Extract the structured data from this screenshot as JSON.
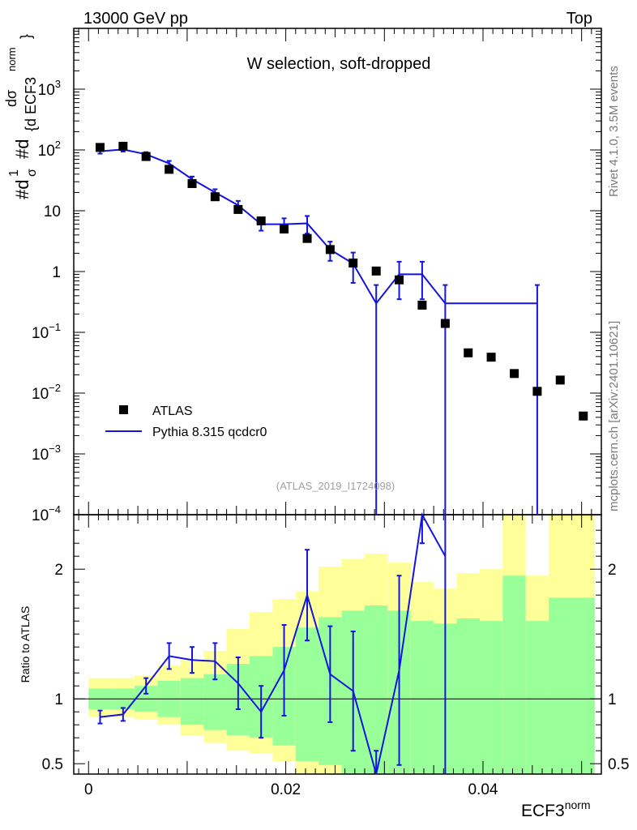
{
  "header": {
    "left": "13000 GeV pp",
    "right": "Top"
  },
  "side_labels": {
    "rivet": "Rivet 4.1.0,  3.5M events",
    "source": "mcplots.cern.ch [arXiv:2401.10621]"
  },
  "chart_data": {
    "type": "line",
    "title": "W selection, soft-dropped",
    "analysis_id": "(ATLAS_2019_I1724098)",
    "main": {
      "ylabel_parts": [
        "#d",
        "1",
        "σ",
        "#d",
        "dσ",
        "{d ECF3",
        "norm",
        "}"
      ],
      "yscale": "log",
      "ylim": [
        0.0001,
        10000
      ],
      "ytick_labels": [
        {
          "value": 1000,
          "base": "10",
          "exp": "3"
        },
        {
          "value": 100,
          "base": "10",
          "exp": "2"
        },
        {
          "value": 10,
          "base": "10",
          "exp": ""
        },
        {
          "value": 1,
          "base": "1",
          "exp": ""
        },
        {
          "value": 0.1,
          "base": "10",
          "exp": "−1"
        },
        {
          "value": 0.01,
          "base": "10",
          "exp": "−2"
        },
        {
          "value": 0.001,
          "base": "10",
          "exp": "−3"
        },
        {
          "value": 0.0001,
          "base": "10",
          "exp": "−4"
        }
      ]
    },
    "xlabel": "ECF3",
    "xlabel_sup": "norm",
    "xlim": [
      -0.0015,
      0.052
    ],
    "xtick_values": [
      0,
      0.02,
      0.04
    ],
    "xtick_labels": [
      "0",
      "0.02",
      "0.04"
    ],
    "x_edges": [
      0,
      0.00233,
      0.00467,
      0.007,
      0.00933,
      0.01167,
      0.014,
      0.01633,
      0.01867,
      0.021,
      0.02333,
      0.02567,
      0.028,
      0.03033,
      0.03267,
      0.035,
      0.03733,
      0.03967,
      0.042,
      0.04433,
      0.04667,
      0.049,
      0.05133
    ],
    "legend": {
      "position": "bottom-left",
      "entries": [
        "ATLAS",
        "Pythia 8.315 qcdcr0"
      ]
    },
    "series": [
      {
        "name": "ATLAS",
        "style": "markers",
        "color": "#000000",
        "x": [
          0.00117,
          0.0035,
          0.00583,
          0.00817,
          0.0105,
          0.01283,
          0.01517,
          0.0175,
          0.01983,
          0.02217,
          0.0245,
          0.02683,
          0.02917,
          0.0315,
          0.03383,
          0.03617,
          0.0385,
          0.04083,
          0.04317,
          0.0455,
          0.04783,
          0.05017
        ],
        "y": [
          110,
          115,
          78,
          48,
          28,
          17,
          10.5,
          6.8,
          5.0,
          3.5,
          2.3,
          1.38,
          1.02,
          0.73,
          0.28,
          0.14,
          0.046,
          0.039,
          0.021,
          0.0107,
          0.0164,
          0.0042
        ]
      },
      {
        "name": "Pythia 8.315 qcdcr0",
        "style": "line",
        "color": "#1414e0",
        "x": [
          0.00117,
          0.0035,
          0.00583,
          0.00817,
          0.0105,
          0.01283,
          0.01517,
          0.0175,
          0.01983,
          0.02217,
          0.0245,
          0.02683,
          0.02917,
          0.0315,
          0.03383,
          0.03617,
          0.0455
        ],
        "y": [
          95,
          102,
          85,
          60,
          33,
          20,
          12.3,
          6.0,
          6.0,
          6.2,
          2.3,
          1.35,
          0.3,
          0.9,
          0.9,
          0.3,
          0.3
        ],
        "yerr_lo": [
          8,
          8,
          7,
          6,
          3.5,
          2.6,
          2.2,
          1.3,
          1.5,
          2.0,
          0.8,
          0.7,
          0.3,
          0.55,
          0.55,
          0.3,
          0.3
        ],
        "yerr_hi": [
          8,
          8,
          7,
          6,
          3.5,
          2.6,
          2.2,
          1.3,
          1.5,
          2.0,
          0.8,
          0.7,
          0.3,
          0.55,
          0.55,
          0.3,
          0.3
        ]
      }
    ],
    "ratio": {
      "ylabel": "Ratio to ATLAS",
      "ylim": [
        0.42,
        2.42
      ],
      "ytick_values": [
        0.5,
        1,
        2
      ],
      "ytick_labels": [
        "0.5",
        "1",
        "2"
      ],
      "band_yellow_lo": [
        0.86,
        0.86,
        0.84,
        0.8,
        0.72,
        0.66,
        0.6,
        0.58,
        0.52,
        0.4,
        0.4,
        0.38,
        0.4,
        0.4,
        0.4,
        0.4,
        0.4,
        0.4,
        0.4,
        0.4,
        0.4,
        0.4
      ],
      "band_yellow_hi": [
        1.16,
        1.16,
        1.18,
        1.26,
        1.3,
        1.37,
        1.54,
        1.67,
        1.77,
        1.83,
        2.02,
        2.08,
        2.12,
        2.05,
        1.9,
        1.85,
        1.97,
        2.0,
        2.45,
        1.95,
        2.45,
        2.45
      ],
      "band_green_lo": [
        0.92,
        0.92,
        0.9,
        0.86,
        0.8,
        0.76,
        0.72,
        0.7,
        0.64,
        0.52,
        0.49,
        0.42,
        0.4,
        0.4,
        0.4,
        0.4,
        0.4,
        0.4,
        0.4,
        0.4,
        0.4,
        0.4
      ],
      "band_green_hi": [
        1.08,
        1.08,
        1.1,
        1.14,
        1.16,
        1.19,
        1.27,
        1.33,
        1.4,
        1.55,
        1.63,
        1.68,
        1.72,
        1.68,
        1.6,
        1.58,
        1.62,
        1.6,
        1.95,
        1.6,
        1.78,
        1.78
      ],
      "mc_ratio_x": [
        0.00117,
        0.0035,
        0.00583,
        0.00817,
        0.0105,
        0.01283,
        0.01517,
        0.0175,
        0.01983,
        0.02217,
        0.0245,
        0.02683,
        0.02917,
        0.0315,
        0.03383,
        0.03617
      ],
      "mc_ratio": [
        0.86,
        0.88,
        1.1,
        1.33,
        1.3,
        1.29,
        1.12,
        0.9,
        1.22,
        1.8,
        1.19,
        1.06,
        0.3,
        1.22,
        3.2,
        2.1
      ],
      "mc_ratio_err": [
        0.05,
        0.05,
        0.06,
        0.1,
        0.1,
        0.14,
        0.2,
        0.2,
        0.35,
        0.35,
        0.37,
        0.46,
        0.3,
        0.73,
        1.0,
        2.1
      ]
    }
  }
}
